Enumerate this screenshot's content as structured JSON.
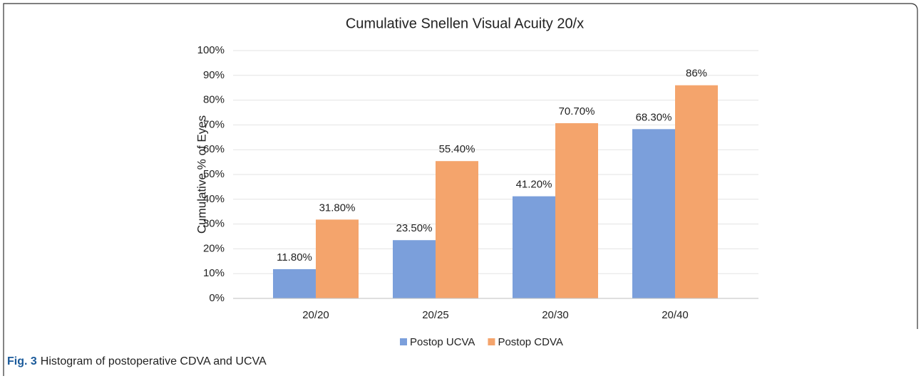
{
  "chart_data": {
    "type": "bar",
    "title": "Cumulative Snellen Visual Acuity 20/x",
    "ylabel": "Cumulative % of Eyes",
    "categories": [
      "20/20",
      "20/25",
      "20/30",
      "20/40"
    ],
    "series": [
      {
        "name": "Postop UCVA",
        "color": "#7b9fdb",
        "values": [
          11.8,
          23.5,
          41.2,
          68.3
        ],
        "value_labels": [
          "11.80%",
          "23.50%",
          "41.20%",
          "68.30%"
        ]
      },
      {
        "name": "Postop CDVA",
        "color": "#f4a46c",
        "values": [
          31.8,
          55.4,
          70.7,
          86
        ],
        "value_labels": [
          "31.80%",
          "55.40%",
          "70.70%",
          "86%"
        ]
      }
    ],
    "ylim": [
      0,
      100
    ],
    "yticks": [
      {
        "value": 0,
        "label": "0%"
      },
      {
        "value": 10,
        "label": "10%"
      },
      {
        "value": 20,
        "label": "20%"
      },
      {
        "value": 30,
        "label": "30%"
      },
      {
        "value": 40,
        "label": "40%"
      },
      {
        "value": 50,
        "label": "50%"
      },
      {
        "value": 60,
        "label": "60%"
      },
      {
        "value": 70,
        "label": "70%"
      },
      {
        "value": 80,
        "label": "80%"
      },
      {
        "value": 90,
        "label": "90%"
      },
      {
        "value": 100,
        "label": "100%"
      }
    ],
    "grid": true,
    "legend": "bottom"
  },
  "caption_label": "Fig. 3",
  "caption": "Histogram of postoperative CDVA and UCVA"
}
